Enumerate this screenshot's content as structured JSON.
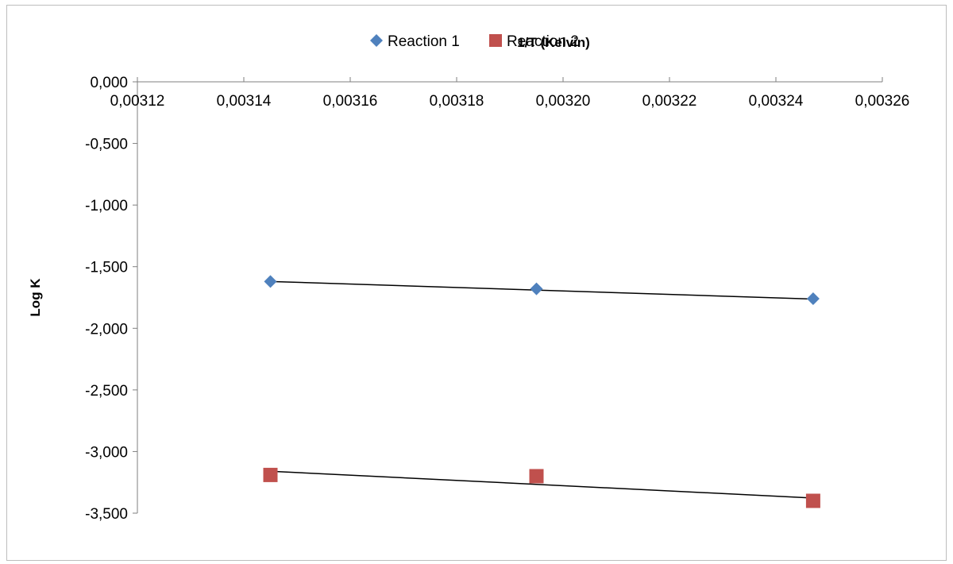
{
  "chart_data": {
    "type": "scatter",
    "title": "",
    "xlabel": "1/T (Kelvin)",
    "ylabel": "Log K",
    "xlim": [
      0.00312,
      0.00326
    ],
    "ylim": [
      -3.5,
      0.0
    ],
    "x_ticks": [
      0.00312,
      0.00314,
      0.00316,
      0.00318,
      0.0032,
      0.00322,
      0.00324,
      0.00326
    ],
    "x_tick_labels": [
      "0,00312",
      "0,00314",
      "0,00316",
      "0,00318",
      "0,00320",
      "0,00322",
      "0,00324",
      "0,00326"
    ],
    "y_ticks": [
      0.0,
      -0.5,
      -1.0,
      -1.5,
      -2.0,
      -2.5,
      -3.0,
      -3.5
    ],
    "y_tick_labels": [
      "0,000",
      "-0,500",
      "-1,000",
      "-1,500",
      "-2,000",
      "-2,500",
      "-3,000",
      "-3,500"
    ],
    "x_axis_position": "top",
    "grid": false,
    "legend_position": "top-center",
    "series": [
      {
        "name": "Reaction 1",
        "marker": "diamond",
        "color": "#4F81BD",
        "x": [
          0.003145,
          0.003195,
          0.003247
        ],
        "y": [
          -1.62,
          -1.68,
          -1.76
        ],
        "trendline": {
          "x": [
            0.003145,
            0.003247
          ],
          "y": [
            -1.62,
            -1.763
          ]
        }
      },
      {
        "name": "Reaction 2",
        "marker": "square",
        "color": "#C0504D",
        "x": [
          0.003145,
          0.003195,
          0.003247
        ],
        "y": [
          -3.19,
          -3.2,
          -3.4
        ],
        "trendline": {
          "x": [
            0.003145,
            0.003247
          ],
          "y": [
            -3.16,
            -3.377
          ]
        }
      }
    ]
  }
}
